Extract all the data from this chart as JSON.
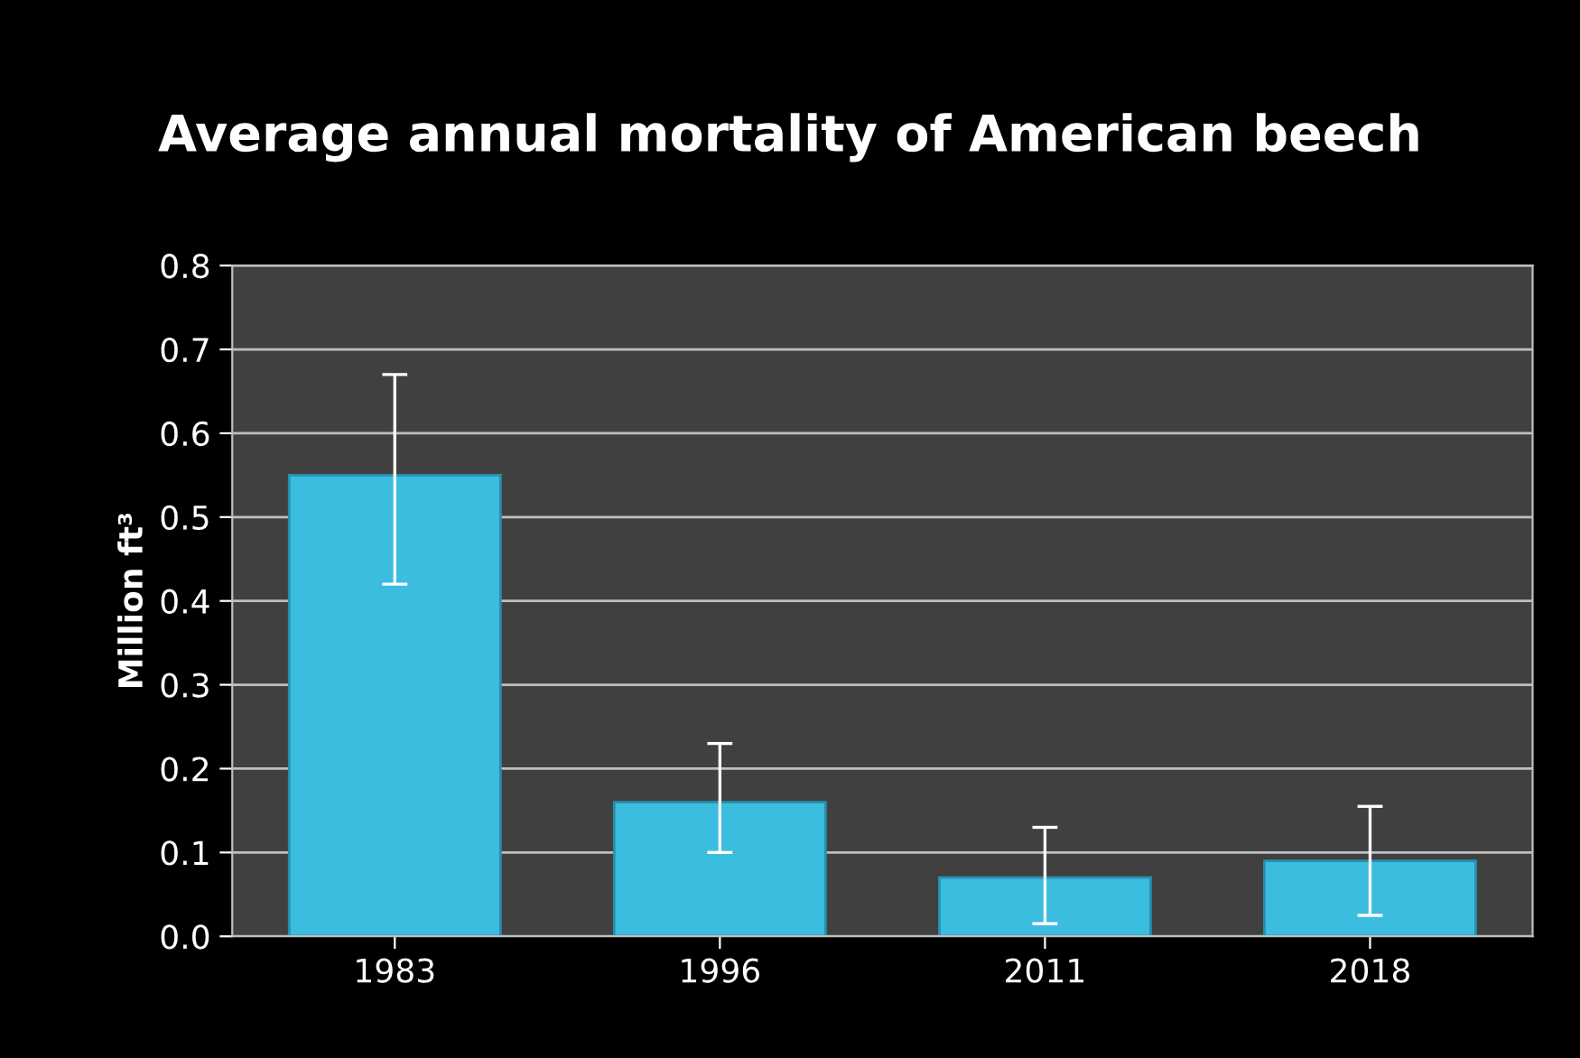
{
  "chart_data": {
    "type": "bar",
    "title": "Average annual mortality of American beech",
    "ylabel": "Million ft³",
    "categories": [
      "1983",
      "1996",
      "2011",
      "2018"
    ],
    "values": [
      0.55,
      0.16,
      0.07,
      0.09
    ],
    "errors": [
      [
        0.42,
        0.67
      ],
      [
        0.1,
        0.23
      ],
      [
        0.015,
        0.13
      ],
      [
        0.025,
        0.155
      ]
    ],
    "color": "#3bbde0",
    "ylim": [
      0,
      0.8
    ],
    "yticks": [
      {
        "value": 0,
        "label": "0.0"
      },
      0.1,
      0.2,
      0.3,
      0.4,
      0.5,
      0.6,
      0.7,
      0.8
    ],
    "grid": "y",
    "legend": false
  }
}
